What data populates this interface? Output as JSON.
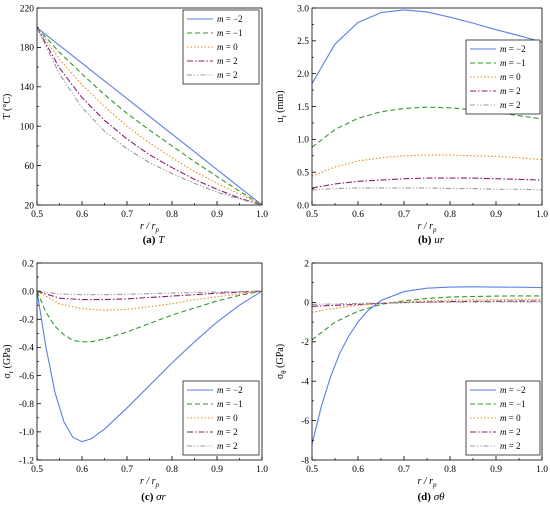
{
  "chart_data": [
    {
      "type": "line",
      "caption_tag": "(a)",
      "caption_sym": "T",
      "ylabel": "T (°C)",
      "xlabel": "r / r_p",
      "xlim": [
        0.5,
        1.0
      ],
      "ylim": [
        20,
        220
      ],
      "xticks": [
        0.5,
        0.6,
        0.7,
        0.8,
        0.9,
        1.0
      ],
      "yticks": [
        20,
        60,
        100,
        140,
        180,
        220
      ],
      "ytick_labels": [
        "20",
        "60",
        "100",
        "140",
        "180",
        "220"
      ],
      "legend_position": "top-right",
      "series": [
        {
          "name": "m = −2",
          "color": "#5b7fe6",
          "dash": "solid",
          "x": [
            0.5,
            0.55,
            0.6,
            0.65,
            0.7,
            0.75,
            0.8,
            0.85,
            0.9,
            0.95,
            1.0
          ],
          "values": [
            200,
            182,
            164,
            146,
            128,
            110,
            92,
            74,
            56,
            38,
            20
          ]
        },
        {
          "name": "m = −1",
          "color": "#2e9a2e",
          "dash": "dashed",
          "x": [
            0.5,
            0.55,
            0.6,
            0.65,
            0.7,
            0.75,
            0.8,
            0.85,
            0.9,
            0.95,
            1.0
          ],
          "values": [
            200,
            175,
            153,
            132,
            113,
            96,
            80,
            64,
            49,
            34,
            20
          ]
        },
        {
          "name": "m = 0",
          "color": "#f08a1c",
          "dash": "dotted",
          "x": [
            0.5,
            0.55,
            0.6,
            0.65,
            0.7,
            0.75,
            0.8,
            0.85,
            0.9,
            0.95,
            1.0
          ],
          "values": [
            200,
            168,
            142,
            120,
            100,
            83,
            68,
            54,
            42,
            31,
            20
          ]
        },
        {
          "name": "m = 2",
          "color": "#8b1e6e",
          "dash": "dashdot",
          "x": [
            0.5,
            0.55,
            0.6,
            0.65,
            0.7,
            0.75,
            0.8,
            0.85,
            0.9,
            0.95,
            1.0
          ],
          "values": [
            200,
            159,
            129,
            106,
            87,
            71,
            58,
            46,
            36,
            27,
            20
          ]
        },
        {
          "name": "m = 2",
          "color": "#999999",
          "dash": "dashdotdot",
          "x": [
            0.5,
            0.55,
            0.6,
            0.65,
            0.7,
            0.75,
            0.8,
            0.85,
            0.9,
            0.95,
            1.0
          ],
          "values": [
            200,
            153,
            119,
            95,
            77,
            63,
            52,
            42,
            33,
            26,
            20
          ]
        }
      ]
    },
    {
      "type": "line",
      "caption_tag": "(b)",
      "caption_sym": "ur",
      "ylabel": "u_r (mm)",
      "xlabel": "r / r_p",
      "xlim": [
        0.5,
        1.0
      ],
      "ylim": [
        0.0,
        3.0
      ],
      "xticks": [
        0.5,
        0.6,
        0.7,
        0.8,
        0.9,
        1.0
      ],
      "yticks": [
        0.0,
        0.5,
        1.0,
        1.5,
        2.0,
        2.5,
        3.0
      ],
      "ytick_labels": [
        "0.0",
        "0.5",
        "1.0",
        "1.5",
        "2.0",
        "2.5",
        "3.0"
      ],
      "legend_position": "right",
      "series": [
        {
          "name": "m = −2",
          "color": "#5b7fe6",
          "dash": "solid",
          "x": [
            0.5,
            0.55,
            0.6,
            0.65,
            0.7,
            0.75,
            0.8,
            0.85,
            0.9,
            0.95,
            1.0
          ],
          "values": [
            1.85,
            2.45,
            2.78,
            2.93,
            2.97,
            2.94,
            2.86,
            2.77,
            2.67,
            2.58,
            2.48
          ]
        },
        {
          "name": "m = −1",
          "color": "#2e9a2e",
          "dash": "dashed",
          "x": [
            0.5,
            0.55,
            0.6,
            0.65,
            0.7,
            0.75,
            0.8,
            0.85,
            0.9,
            0.95,
            1.0
          ],
          "values": [
            0.88,
            1.15,
            1.32,
            1.42,
            1.47,
            1.49,
            1.48,
            1.45,
            1.41,
            1.36,
            1.31
          ]
        },
        {
          "name": "m = 0",
          "color": "#f08a1c",
          "dash": "dotted",
          "x": [
            0.5,
            0.55,
            0.6,
            0.65,
            0.7,
            0.75,
            0.8,
            0.85,
            0.9,
            0.95,
            1.0
          ],
          "values": [
            0.44,
            0.58,
            0.67,
            0.72,
            0.75,
            0.76,
            0.76,
            0.75,
            0.74,
            0.72,
            0.69
          ]
        },
        {
          "name": "m = 2",
          "color": "#8b1e6e",
          "dash": "dashdot",
          "x": [
            0.5,
            0.55,
            0.6,
            0.65,
            0.7,
            0.75,
            0.8,
            0.85,
            0.9,
            0.95,
            1.0
          ],
          "values": [
            0.26,
            0.32,
            0.36,
            0.38,
            0.4,
            0.41,
            0.41,
            0.41,
            0.4,
            0.39,
            0.38
          ]
        },
        {
          "name": "m = 2",
          "color": "#999999",
          "dash": "dashdotdot",
          "x": [
            0.5,
            0.55,
            0.6,
            0.65,
            0.7,
            0.75,
            0.8,
            0.85,
            0.9,
            0.95,
            1.0
          ],
          "values": [
            0.23,
            0.25,
            0.26,
            0.26,
            0.26,
            0.26,
            0.25,
            0.25,
            0.24,
            0.24,
            0.23
          ]
        }
      ]
    },
    {
      "type": "line",
      "caption_tag": "(c)",
      "caption_sym": "σr",
      "ylabel": "σ_r (GPa)",
      "xlabel": "r / r_p",
      "xlim": [
        0.5,
        1.0
      ],
      "ylim": [
        -1.2,
        0.2
      ],
      "xticks": [
        0.5,
        0.6,
        0.7,
        0.8,
        0.9,
        1.0
      ],
      "yticks": [
        -1.2,
        -1.0,
        -0.8,
        -0.6,
        -0.4,
        -0.2,
        0.0,
        0.2
      ],
      "ytick_labels": [
        "-1.2",
        "-1.0",
        "-0.8",
        "-0.6",
        "-0.4",
        "-0.2",
        "0.0",
        "0.2"
      ],
      "legend_position": "bottom-right",
      "series": [
        {
          "name": "m = −2",
          "color": "#5b7fe6",
          "dash": "solid",
          "x": [
            0.5,
            0.52,
            0.54,
            0.56,
            0.58,
            0.6,
            0.62,
            0.65,
            0.7,
            0.75,
            0.8,
            0.85,
            0.9,
            0.95,
            1.0
          ],
          "values": [
            0.0,
            -0.4,
            -0.72,
            -0.93,
            -1.04,
            -1.07,
            -1.05,
            -0.98,
            -0.83,
            -0.67,
            -0.51,
            -0.36,
            -0.22,
            -0.1,
            0.0
          ]
        },
        {
          "name": "m = −1",
          "color": "#2e9a2e",
          "dash": "dashed",
          "x": [
            0.5,
            0.52,
            0.54,
            0.56,
            0.58,
            0.6,
            0.62,
            0.65,
            0.7,
            0.75,
            0.8,
            0.85,
            0.9,
            0.95,
            1.0
          ],
          "values": [
            0.0,
            -0.15,
            -0.25,
            -0.31,
            -0.35,
            -0.36,
            -0.36,
            -0.34,
            -0.29,
            -0.23,
            -0.17,
            -0.12,
            -0.07,
            -0.03,
            0.0
          ]
        },
        {
          "name": "m = 0",
          "color": "#f08a1c",
          "dash": "dotted",
          "x": [
            0.5,
            0.55,
            0.6,
            0.65,
            0.7,
            0.75,
            0.8,
            0.85,
            0.9,
            0.95,
            1.0
          ],
          "values": [
            0.0,
            -0.09,
            -0.125,
            -0.135,
            -0.13,
            -0.11,
            -0.09,
            -0.06,
            -0.04,
            -0.02,
            0.0
          ]
        },
        {
          "name": "m = 2",
          "color": "#8b1e6e",
          "dash": "dashdot",
          "x": [
            0.5,
            0.55,
            0.6,
            0.65,
            0.7,
            0.75,
            0.8,
            0.85,
            0.9,
            0.95,
            1.0
          ],
          "values": [
            0.0,
            -0.05,
            -0.06,
            -0.06,
            -0.055,
            -0.045,
            -0.035,
            -0.025,
            -0.015,
            -0.007,
            0.0
          ]
        },
        {
          "name": "m = 2",
          "color": "#999999",
          "dash": "dashdotdot",
          "x": [
            0.5,
            0.55,
            0.6,
            0.65,
            0.7,
            0.75,
            0.8,
            0.85,
            0.9,
            0.95,
            1.0
          ],
          "values": [
            0.0,
            -0.02,
            -0.025,
            -0.025,
            -0.022,
            -0.018,
            -0.014,
            -0.01,
            -0.006,
            -0.003,
            0.0
          ]
        }
      ]
    },
    {
      "type": "line",
      "caption_tag": "(d)",
      "caption_sym": "σθ",
      "ylabel": "σ_θ (GPa)",
      "xlabel": "r / r_p",
      "xlim": [
        0.5,
        1.0
      ],
      "ylim": [
        -8,
        2
      ],
      "xticks": [
        0.5,
        0.6,
        0.7,
        0.8,
        0.9,
        1.0
      ],
      "yticks": [
        -8,
        -6,
        -4,
        -2,
        0,
        2
      ],
      "ytick_labels": [
        "-8",
        "-6",
        "-4",
        "-2",
        "0",
        "2"
      ],
      "legend_position": "bottom-right",
      "series": [
        {
          "name": "m = −2",
          "color": "#5b7fe6",
          "dash": "solid",
          "x": [
            0.5,
            0.52,
            0.54,
            0.56,
            0.58,
            0.6,
            0.62,
            0.65,
            0.7,
            0.75,
            0.8,
            0.85,
            0.9,
            0.95,
            1.0
          ],
          "values": [
            -7.2,
            -5.3,
            -3.8,
            -2.6,
            -1.7,
            -1.0,
            -0.45,
            0.1,
            0.55,
            0.72,
            0.78,
            0.79,
            0.78,
            0.77,
            0.75
          ]
        },
        {
          "name": "m = −1",
          "color": "#2e9a2e",
          "dash": "dashed",
          "x": [
            0.5,
            0.55,
            0.6,
            0.65,
            0.7,
            0.75,
            0.8,
            0.85,
            0.9,
            0.95,
            1.0
          ],
          "values": [
            -1.9,
            -1.0,
            -0.45,
            -0.1,
            0.08,
            0.2,
            0.27,
            0.3,
            0.32,
            0.33,
            0.33
          ]
        },
        {
          "name": "m = 0",
          "color": "#f08a1c",
          "dash": "dotted",
          "x": [
            0.5,
            0.55,
            0.6,
            0.65,
            0.7,
            0.75,
            0.8,
            0.85,
            0.9,
            0.95,
            1.0
          ],
          "values": [
            -0.5,
            -0.3,
            -0.15,
            -0.05,
            0.03,
            0.08,
            0.11,
            0.13,
            0.14,
            0.15,
            0.15
          ]
        },
        {
          "name": "m = 2",
          "color": "#8b1e6e",
          "dash": "dashdot",
          "x": [
            0.5,
            0.55,
            0.6,
            0.65,
            0.7,
            0.75,
            0.8,
            0.85,
            0.9,
            0.95,
            1.0
          ],
          "values": [
            -0.2,
            -0.15,
            -0.1,
            -0.05,
            -0.01,
            0.02,
            0.04,
            0.05,
            0.06,
            0.07,
            0.07
          ]
        },
        {
          "name": "m = 2",
          "color": "#999999",
          "dash": "dashdotdot",
          "x": [
            0.5,
            0.55,
            0.6,
            0.65,
            0.7,
            0.75,
            0.8,
            0.85,
            0.9,
            0.95,
            1.0
          ],
          "values": [
            -0.1,
            -0.08,
            -0.05,
            -0.03,
            -0.01,
            0.0,
            0.01,
            0.02,
            0.02,
            0.02,
            0.02
          ]
        }
      ]
    }
  ]
}
